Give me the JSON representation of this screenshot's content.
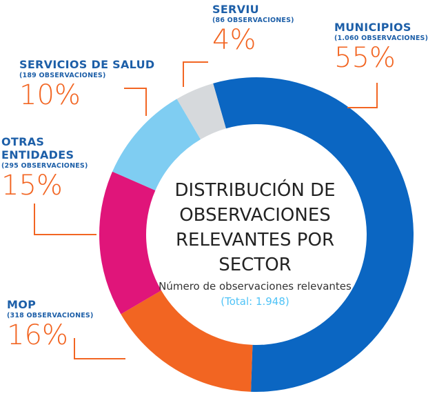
{
  "chart_data": {
    "type": "pie",
    "title": "DISTRIBUCIÓN DE OBSERVACIONES RELEVANTES POR SECTOR",
    "subtitle": "Número de observaciones relevantes",
    "total_label": "(Total: 1.948)",
    "categories": [
      "MUNICIPIOS",
      "MOP",
      "OTRAS ENTIDADES",
      "SERVICIOS DE SALUD",
      "SERVIU"
    ],
    "observation_labels": [
      "(1.060 OBSERVACIONES)",
      "(318 OBSERVACIONES)",
      "(295 OBSERVACIONES)",
      "(189 OBSERVACIONES)",
      "(86 OBSERVACIONES)"
    ],
    "values": [
      55,
      16,
      15,
      10,
      4
    ],
    "value_labels": [
      "55%",
      "16%",
      "15%",
      "10%",
      "4%"
    ],
    "colors": [
      "#0b66c2",
      "#f26522",
      "#e0157a",
      "#7fcdf2",
      "#d6d9dc"
    ]
  }
}
